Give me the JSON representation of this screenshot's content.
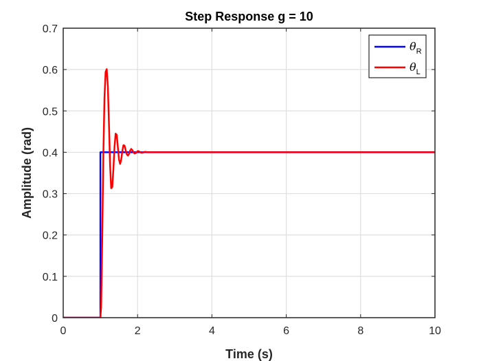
{
  "chart_data": {
    "type": "line",
    "title": "Step Response g = 10",
    "xlabel": "Time (s)",
    "ylabel": "Amplitude (rad)",
    "xlim": [
      0,
      10
    ],
    "ylim": [
      0,
      0.7
    ],
    "xticks": [
      0,
      2,
      4,
      6,
      8,
      10
    ],
    "yticks": [
      0,
      0.1,
      0.2,
      0.3,
      0.4,
      0.5,
      0.6,
      0.7
    ],
    "xtick_labels": [
      "0",
      "2",
      "4",
      "6",
      "8",
      "10"
    ],
    "ytick_labels": [
      "0",
      "0.1",
      "0.2",
      "0.3",
      "0.4",
      "0.5",
      "0.6",
      "0.7"
    ],
    "grid": true,
    "legend_position": "top-right",
    "series": [
      {
        "name": "θR",
        "symbol": "θ",
        "subscript": "R",
        "color": "#0000ff",
        "x": [
          0,
          1.0,
          1.0,
          10
        ],
        "y": [
          0,
          0,
          0.4,
          0.4
        ]
      },
      {
        "name": "θL",
        "symbol": "θ",
        "subscript": "L",
        "color": "#ff0000",
        "x": [
          0,
          1.0,
          1.02,
          1.05,
          1.08,
          1.11,
          1.14,
          1.17,
          1.2,
          1.23,
          1.26,
          1.29,
          1.32,
          1.35,
          1.38,
          1.41,
          1.44,
          1.47,
          1.5,
          1.53,
          1.56,
          1.59,
          1.62,
          1.65,
          1.68,
          1.71,
          1.74,
          1.77,
          1.8,
          1.83,
          1.86,
          1.89,
          1.92,
          1.95,
          1.98,
          2.01,
          2.04,
          2.07,
          2.1,
          2.13,
          2.16,
          2.19,
          2.22,
          2.25,
          2.3,
          2.4,
          2.5,
          2.6,
          2.8,
          3.0,
          4.0,
          10.0
        ],
        "y": [
          0,
          0,
          0.026,
          0.195,
          0.396,
          0.531,
          0.594,
          0.601,
          0.56,
          0.472,
          0.37,
          0.313,
          0.316,
          0.36,
          0.413,
          0.445,
          0.442,
          0.412,
          0.383,
          0.372,
          0.382,
          0.403,
          0.417,
          0.416,
          0.405,
          0.395,
          0.392,
          0.396,
          0.404,
          0.408,
          0.405,
          0.4,
          0.397,
          0.398,
          0.401,
          0.403,
          0.402,
          0.4,
          0.399,
          0.399,
          0.4,
          0.401,
          0.401,
          0.4,
          0.4,
          0.4,
          0.4,
          0.4,
          0.4,
          0.4,
          0.4,
          0.4
        ]
      }
    ]
  },
  "colors": {
    "axis": "#262626",
    "grid": "#dfdfdf",
    "background": "#ffffff"
  }
}
